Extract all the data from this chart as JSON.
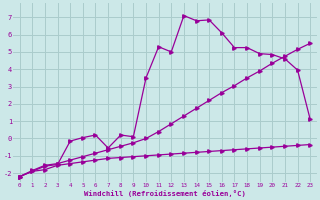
{
  "background_color": "#cce8e8",
  "grid_color": "#aacccc",
  "line_color": "#990099",
  "xlabel": "Windchill (Refroidissement éolien,°C)",
  "xlim": [
    -0.5,
    23.5
  ],
  "ylim": [
    -2.5,
    7.8
  ],
  "yticks": [
    -2,
    -1,
    0,
    1,
    2,
    3,
    4,
    5,
    6,
    7
  ],
  "xticks": [
    0,
    1,
    2,
    3,
    4,
    5,
    6,
    7,
    8,
    9,
    10,
    11,
    12,
    13,
    14,
    15,
    16,
    17,
    18,
    19,
    20,
    21,
    22,
    23
  ],
  "series1_x": [
    0,
    1,
    2,
    3,
    4,
    5,
    6,
    7,
    8,
    9,
    10,
    11,
    12,
    13,
    14,
    15,
    16,
    17,
    18,
    19,
    20,
    21,
    22,
    23
  ],
  "series1_y": [
    -2.2,
    -1.9,
    -1.8,
    -1.55,
    -1.45,
    -1.35,
    -1.25,
    -1.15,
    -1.1,
    -1.05,
    -1.0,
    -0.95,
    -0.9,
    -0.85,
    -0.8,
    -0.75,
    -0.7,
    -0.65,
    -0.6,
    -0.55,
    -0.5,
    -0.45,
    -0.4,
    -0.35
  ],
  "series2_x": [
    0,
    1,
    2,
    3,
    4,
    5,
    6,
    7,
    8,
    9,
    10,
    11,
    12,
    13,
    14,
    15,
    16,
    17,
    18,
    19,
    20,
    21,
    22,
    23
  ],
  "series2_y": [
    -2.2,
    -1.9,
    -1.6,
    -1.5,
    -0.15,
    0.05,
    0.2,
    -0.55,
    0.2,
    0.1,
    3.5,
    5.3,
    5.0,
    7.1,
    6.8,
    6.85,
    6.1,
    5.25,
    5.25,
    4.9,
    4.85,
    4.6,
    3.95,
    1.1
  ],
  "series2_last": [
    -0.3
  ],
  "series3_x": [
    0,
    1,
    2,
    3,
    4,
    5,
    6,
    7,
    8,
    9,
    10,
    11,
    12,
    13,
    14,
    15,
    16,
    17,
    18,
    19,
    20,
    21,
    22,
    23
  ],
  "series3_y": [
    -2.2,
    -1.85,
    -1.55,
    -1.45,
    -1.25,
    -1.05,
    -0.85,
    -0.65,
    -0.45,
    -0.25,
    -0.0,
    0.4,
    0.85,
    1.3,
    1.75,
    2.2,
    2.65,
    3.05,
    3.5,
    3.9,
    4.35,
    4.75,
    5.15,
    5.5
  ]
}
